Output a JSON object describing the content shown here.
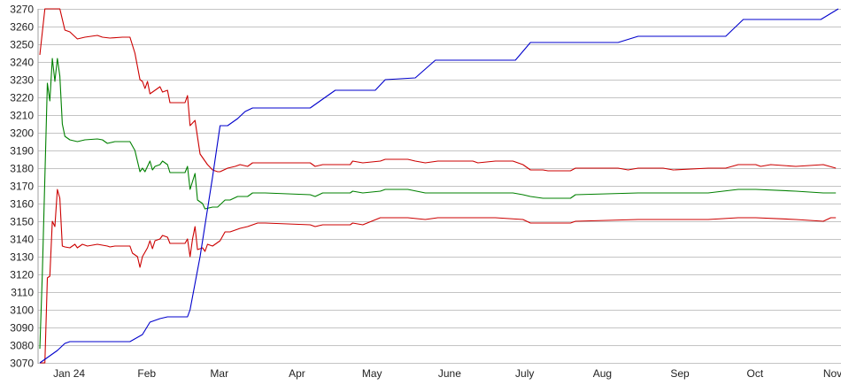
{
  "chart_data": {
    "type": "line",
    "xlim": [
      "2023-12-21",
      "2024-11-04"
    ],
    "ylim": [
      3070,
      3270
    ],
    "y_ticks": [
      3070,
      3080,
      3090,
      3100,
      3110,
      3120,
      3130,
      3140,
      3150,
      3160,
      3170,
      3180,
      3190,
      3200,
      3210,
      3220,
      3230,
      3240,
      3250,
      3260,
      3270
    ],
    "x_ticks": [
      {
        "label": "Jan 24",
        "date": "2024-01-01"
      },
      {
        "label": "Feb",
        "date": "2024-02-01"
      },
      {
        "label": "Mar",
        "date": "2024-03-01"
      },
      {
        "label": "Apr",
        "date": "2024-04-01"
      },
      {
        "label": "May",
        "date": "2024-05-01"
      },
      {
        "label": "June",
        "date": "2024-06-01"
      },
      {
        "label": "July",
        "date": "2024-07-01"
      },
      {
        "label": "Aug",
        "date": "2024-08-01"
      },
      {
        "label": "Sep",
        "date": "2024-09-01"
      },
      {
        "label": "Oct",
        "date": "2024-10-01"
      },
      {
        "label": "Nov",
        "date": "2024-11-01"
      }
    ],
    "grid": {
      "horizontal": true,
      "vertical": false
    },
    "legend": "none",
    "series": [
      {
        "color": "#cc0000",
        "points": [
          [
            "2023-12-21",
            3244
          ],
          [
            "2023-12-23",
            3270
          ],
          [
            "2023-12-29",
            3270
          ],
          [
            "2023-12-31",
            3258
          ],
          [
            "2024-01-02",
            3257
          ],
          [
            "2024-01-05",
            3253
          ],
          [
            "2024-01-08",
            3254
          ],
          [
            "2024-01-13",
            3255
          ],
          [
            "2024-01-15",
            3254
          ],
          [
            "2024-01-18",
            3253.5
          ],
          [
            "2024-01-23",
            3254
          ],
          [
            "2024-01-26",
            3254
          ],
          [
            "2024-01-28",
            3245
          ],
          [
            "2024-01-30",
            3230
          ],
          [
            "2024-01-31",
            3229
          ],
          [
            "2024-02-01",
            3225
          ],
          [
            "2024-02-02",
            3229
          ],
          [
            "2024-02-03",
            3222
          ],
          [
            "2024-02-05",
            3224
          ],
          [
            "2024-02-07",
            3226
          ],
          [
            "2024-02-08",
            3223
          ],
          [
            "2024-02-10",
            3224
          ],
          [
            "2024-02-11",
            3217
          ],
          [
            "2024-02-17",
            3217
          ],
          [
            "2024-02-18",
            3221
          ],
          [
            "2024-02-19",
            3204
          ],
          [
            "2024-02-21",
            3207
          ],
          [
            "2024-02-23",
            3188
          ],
          [
            "2024-02-25",
            3184
          ],
          [
            "2024-02-26",
            3182
          ],
          [
            "2024-02-28",
            3179
          ],
          [
            "2024-03-01",
            3178
          ],
          [
            "2024-03-02",
            3178
          ],
          [
            "2024-03-05",
            3180
          ],
          [
            "2024-03-08",
            3181
          ],
          [
            "2024-03-10",
            3182
          ],
          [
            "2024-03-13",
            3181
          ],
          [
            "2024-03-15",
            3183
          ],
          [
            "2024-03-20",
            3183
          ],
          [
            "2024-04-07",
            3183
          ],
          [
            "2024-04-09",
            3181
          ],
          [
            "2024-04-12",
            3182
          ],
          [
            "2024-04-23",
            3182
          ],
          [
            "2024-04-24",
            3184
          ],
          [
            "2024-04-28",
            3183
          ],
          [
            "2024-05-05",
            3184
          ],
          [
            "2024-05-07",
            3185
          ],
          [
            "2024-05-16",
            3185
          ],
          [
            "2024-05-19",
            3184
          ],
          [
            "2024-05-23",
            3183
          ],
          [
            "2024-05-28",
            3184
          ],
          [
            "2024-06-11",
            3184
          ],
          [
            "2024-06-13",
            3183
          ],
          [
            "2024-06-20",
            3184
          ],
          [
            "2024-06-27",
            3184
          ],
          [
            "2024-07-01",
            3182
          ],
          [
            "2024-07-04",
            3179
          ],
          [
            "2024-07-09",
            3179
          ],
          [
            "2024-07-11",
            3178.5
          ],
          [
            "2024-07-20",
            3178.5
          ],
          [
            "2024-07-22",
            3180
          ],
          [
            "2024-08-08",
            3180
          ],
          [
            "2024-08-12",
            3179
          ],
          [
            "2024-08-16",
            3180
          ],
          [
            "2024-08-26",
            3180
          ],
          [
            "2024-08-30",
            3179
          ],
          [
            "2024-09-13",
            3180
          ],
          [
            "2024-09-20",
            3180
          ],
          [
            "2024-09-25",
            3182
          ],
          [
            "2024-10-02",
            3182
          ],
          [
            "2024-10-04",
            3181
          ],
          [
            "2024-10-08",
            3182
          ],
          [
            "2024-10-18",
            3181
          ],
          [
            "2024-10-29",
            3182
          ],
          [
            "2024-11-03",
            3180
          ]
        ]
      },
      {
        "color": "#008000",
        "points": [
          [
            "2023-12-21",
            3078
          ],
          [
            "2023-12-22",
            3120
          ],
          [
            "2023-12-23",
            3175
          ],
          [
            "2023-12-24",
            3228
          ],
          [
            "2023-12-25",
            3218
          ],
          [
            "2023-12-26",
            3242
          ],
          [
            "2023-12-27",
            3229
          ],
          [
            "2023-12-28",
            3242
          ],
          [
            "2023-12-29",
            3232
          ],
          [
            "2023-12-30",
            3205
          ],
          [
            "2023-12-31",
            3198
          ],
          [
            "2024-01-02",
            3196
          ],
          [
            "2024-01-05",
            3195
          ],
          [
            "2024-01-08",
            3196
          ],
          [
            "2024-01-13",
            3196.5
          ],
          [
            "2024-01-15",
            3196
          ],
          [
            "2024-01-17",
            3194
          ],
          [
            "2024-01-20",
            3195
          ],
          [
            "2024-01-26",
            3195
          ],
          [
            "2024-01-28",
            3190
          ],
          [
            "2024-01-30",
            3178
          ],
          [
            "2024-01-31",
            3180
          ],
          [
            "2024-02-01",
            3178
          ],
          [
            "2024-02-03",
            3184
          ],
          [
            "2024-02-04",
            3179
          ],
          [
            "2024-02-05",
            3181
          ],
          [
            "2024-02-07",
            3182
          ],
          [
            "2024-02-08",
            3184
          ],
          [
            "2024-02-10",
            3182
          ],
          [
            "2024-02-11",
            3177.5
          ],
          [
            "2024-02-17",
            3177.5
          ],
          [
            "2024-02-18",
            3181
          ],
          [
            "2024-02-19",
            3168
          ],
          [
            "2024-02-21",
            3177
          ],
          [
            "2024-02-22",
            3162
          ],
          [
            "2024-02-24",
            3160
          ],
          [
            "2024-02-25",
            3157
          ],
          [
            "2024-02-28",
            3158
          ],
          [
            "2024-03-01",
            3158
          ],
          [
            "2024-03-04",
            3162
          ],
          [
            "2024-03-06",
            3162
          ],
          [
            "2024-03-09",
            3164
          ],
          [
            "2024-03-13",
            3164
          ],
          [
            "2024-03-15",
            3166
          ],
          [
            "2024-03-20",
            3166
          ],
          [
            "2024-04-07",
            3165
          ],
          [
            "2024-04-09",
            3164
          ],
          [
            "2024-04-12",
            3166
          ],
          [
            "2024-04-23",
            3166
          ],
          [
            "2024-04-24",
            3167
          ],
          [
            "2024-04-28",
            3166
          ],
          [
            "2024-05-05",
            3167
          ],
          [
            "2024-05-07",
            3168
          ],
          [
            "2024-05-16",
            3168
          ],
          [
            "2024-05-23",
            3166
          ],
          [
            "2024-06-27",
            3166
          ],
          [
            "2024-07-01",
            3165
          ],
          [
            "2024-07-04",
            3164
          ],
          [
            "2024-07-09",
            3163
          ],
          [
            "2024-07-20",
            3163
          ],
          [
            "2024-07-22",
            3165
          ],
          [
            "2024-08-16",
            3166
          ],
          [
            "2024-09-13",
            3166
          ],
          [
            "2024-09-25",
            3168
          ],
          [
            "2024-10-02",
            3168
          ],
          [
            "2024-10-18",
            3167
          ],
          [
            "2024-10-29",
            3166
          ],
          [
            "2024-11-03",
            3166
          ]
        ]
      },
      {
        "color": "#cc0000",
        "points": [
          [
            "2023-12-21",
            3070
          ],
          [
            "2023-12-23",
            3070
          ],
          [
            "2023-12-24",
            3118
          ],
          [
            "2023-12-25",
            3119
          ],
          [
            "2023-12-26",
            3150
          ],
          [
            "2023-12-27",
            3147
          ],
          [
            "2023-12-28",
            3168
          ],
          [
            "2023-12-29",
            3163
          ],
          [
            "2023-12-30",
            3136
          ],
          [
            "2023-12-31",
            3135.5
          ],
          [
            "2024-01-02",
            3135
          ],
          [
            "2024-01-04",
            3137
          ],
          [
            "2024-01-05",
            3135
          ],
          [
            "2024-01-07",
            3137
          ],
          [
            "2024-01-09",
            3136
          ],
          [
            "2024-01-13",
            3137
          ],
          [
            "2024-01-17",
            3136
          ],
          [
            "2024-01-18",
            3135.5
          ],
          [
            "2024-01-20",
            3136
          ],
          [
            "2024-01-26",
            3136
          ],
          [
            "2024-01-27",
            3132
          ],
          [
            "2024-01-29",
            3130
          ],
          [
            "2024-01-30",
            3124
          ],
          [
            "2024-01-31",
            3130
          ],
          [
            "2024-02-02",
            3135
          ],
          [
            "2024-02-03",
            3139
          ],
          [
            "2024-02-04",
            3134.5
          ],
          [
            "2024-02-05",
            3139
          ],
          [
            "2024-02-07",
            3140
          ],
          [
            "2024-02-08",
            3142
          ],
          [
            "2024-02-10",
            3141
          ],
          [
            "2024-02-11",
            3137.5
          ],
          [
            "2024-02-17",
            3137.5
          ],
          [
            "2024-02-18",
            3140
          ],
          [
            "2024-02-19",
            3130
          ],
          [
            "2024-02-20",
            3140
          ],
          [
            "2024-02-21",
            3147
          ],
          [
            "2024-02-22",
            3134
          ],
          [
            "2024-02-24",
            3135
          ],
          [
            "2024-02-25",
            3133
          ],
          [
            "2024-02-26",
            3137
          ],
          [
            "2024-02-28",
            3136
          ],
          [
            "2024-03-01",
            3138
          ],
          [
            "2024-03-02",
            3139
          ],
          [
            "2024-03-04",
            3144
          ],
          [
            "2024-03-06",
            3144
          ],
          [
            "2024-03-08",
            3145
          ],
          [
            "2024-03-10",
            3146
          ],
          [
            "2024-03-13",
            3147
          ],
          [
            "2024-03-17",
            3149
          ],
          [
            "2024-03-20",
            3149
          ],
          [
            "2024-04-07",
            3148
          ],
          [
            "2024-04-09",
            3147
          ],
          [
            "2024-04-12",
            3148
          ],
          [
            "2024-04-23",
            3148
          ],
          [
            "2024-04-24",
            3149
          ],
          [
            "2024-04-28",
            3148
          ],
          [
            "2024-05-05",
            3152
          ],
          [
            "2024-05-16",
            3152
          ],
          [
            "2024-05-23",
            3151
          ],
          [
            "2024-05-28",
            3152
          ],
          [
            "2024-06-20",
            3152
          ],
          [
            "2024-07-01",
            3151
          ],
          [
            "2024-07-04",
            3149
          ],
          [
            "2024-07-09",
            3149
          ],
          [
            "2024-07-20",
            3149
          ],
          [
            "2024-07-22",
            3150
          ],
          [
            "2024-08-16",
            3151
          ],
          [
            "2024-09-13",
            3151
          ],
          [
            "2024-09-25",
            3152
          ],
          [
            "2024-10-02",
            3152
          ],
          [
            "2024-10-18",
            3151
          ],
          [
            "2024-10-29",
            3150
          ],
          [
            "2024-11-01",
            3152
          ],
          [
            "2024-11-03",
            3152
          ]
        ]
      },
      {
        "color": "#0000cc",
        "points": [
          [
            "2023-12-21",
            3070
          ],
          [
            "2023-12-23",
            3072
          ],
          [
            "2023-12-28",
            3077
          ],
          [
            "2023-12-31",
            3081
          ],
          [
            "2024-01-02",
            3082
          ],
          [
            "2024-01-26",
            3082
          ],
          [
            "2024-01-31",
            3086
          ],
          [
            "2024-02-03",
            3093
          ],
          [
            "2024-02-07",
            3095
          ],
          [
            "2024-02-10",
            3096
          ],
          [
            "2024-02-18",
            3096
          ],
          [
            "2024-02-19",
            3100
          ],
          [
            "2024-02-23",
            3130
          ],
          [
            "2024-02-28",
            3175
          ],
          [
            "2024-03-02",
            3204
          ],
          [
            "2024-03-05",
            3204
          ],
          [
            "2024-03-09",
            3208
          ],
          [
            "2024-03-12",
            3212
          ],
          [
            "2024-03-15",
            3214
          ],
          [
            "2024-04-07",
            3214
          ],
          [
            "2024-04-12",
            3219
          ],
          [
            "2024-04-17",
            3224
          ],
          [
            "2024-05-03",
            3224
          ],
          [
            "2024-05-07",
            3230
          ],
          [
            "2024-05-19",
            3231
          ],
          [
            "2024-05-27",
            3241
          ],
          [
            "2024-06-28",
            3241
          ],
          [
            "2024-07-04",
            3251
          ],
          [
            "2024-08-08",
            3251
          ],
          [
            "2024-08-16",
            3254.5
          ],
          [
            "2024-09-20",
            3254.5
          ],
          [
            "2024-09-27",
            3264
          ],
          [
            "2024-10-28",
            3264
          ],
          [
            "2024-11-04",
            3270
          ]
        ]
      }
    ]
  }
}
